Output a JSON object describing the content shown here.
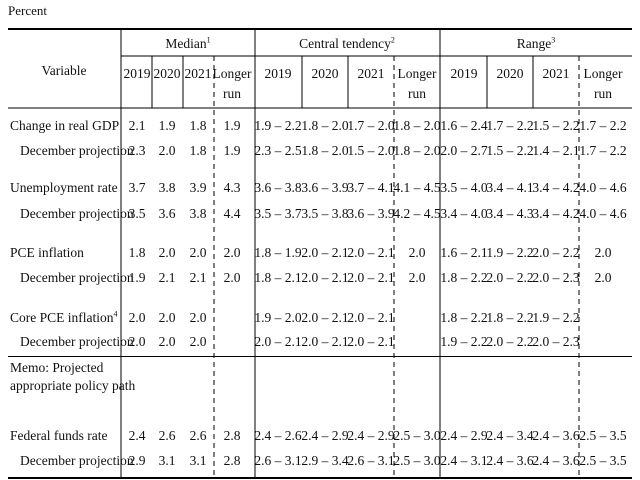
{
  "units_label": "Percent",
  "header": {
    "variable_label": "Variable",
    "groups": [
      {
        "label": "Median",
        "note": "1"
      },
      {
        "label": "Central tendency",
        "note": "2"
      },
      {
        "label": "Range",
        "note": "3"
      }
    ],
    "years": [
      "2019",
      "2020",
      "2021"
    ],
    "longer_run": [
      "Longer",
      "run"
    ]
  },
  "rows": [
    {
      "label": "Change in real GDP",
      "note": "",
      "median": [
        "2.1",
        "1.9",
        "1.8",
        "1.9"
      ],
      "central": [
        "1.9 – 2.2",
        "1.8 – 2.0",
        "1.7 – 2.0",
        "1.8 – 2.0"
      ],
      "range": [
        "1.6 – 2.4",
        "1.7 – 2.2",
        "1.5 – 2.2",
        "1.7 – 2.2"
      ]
    },
    {
      "label": "December projection",
      "note": "",
      "median": [
        "2.3",
        "2.0",
        "1.8",
        "1.9"
      ],
      "central": [
        "2.3 – 2.5",
        "1.8 – 2.0",
        "1.5 – 2.0",
        "1.8 – 2.0"
      ],
      "range": [
        "2.0 – 2.7",
        "1.5 – 2.2",
        "1.4 – 2.1",
        "1.7 – 2.2"
      ]
    },
    {
      "label": "Unemployment rate",
      "note": "",
      "median": [
        "3.7",
        "3.8",
        "3.9",
        "4.3"
      ],
      "central": [
        "3.6 – 3.8",
        "3.6 – 3.9",
        "3.7 – 4.1",
        "4.1 – 4.5"
      ],
      "range": [
        "3.5 – 4.0",
        "3.4 – 4.1",
        "3.4 – 4.2",
        "4.0 – 4.6"
      ]
    },
    {
      "label": "December projection",
      "note": "",
      "median": [
        "3.5",
        "3.6",
        "3.8",
        "4.4"
      ],
      "central": [
        "3.5 – 3.7",
        "3.5 – 3.8",
        "3.6 – 3.9",
        "4.2 – 4.5"
      ],
      "range": [
        "3.4 – 4.0",
        "3.4 – 4.3",
        "3.4 – 4.2",
        "4.0 – 4.6"
      ]
    },
    {
      "label": "PCE inflation",
      "note": "",
      "median": [
        "1.8",
        "2.0",
        "2.0",
        "2.0"
      ],
      "central": [
        "1.8 – 1.9",
        "2.0 – 2.1",
        "2.0 – 2.1",
        "2.0"
      ],
      "range": [
        "1.6 – 2.1",
        "1.9 – 2.2",
        "2.0 – 2.2",
        "2.0"
      ]
    },
    {
      "label": "December projection",
      "note": "",
      "median": [
        "1.9",
        "2.1",
        "2.1",
        "2.0"
      ],
      "central": [
        "1.8 – 2.1",
        "2.0 – 2.1",
        "2.0 – 2.1",
        "2.0"
      ],
      "range": [
        "1.8 – 2.2",
        "2.0 – 2.2",
        "2.0 – 2.3",
        "2.0"
      ]
    },
    {
      "label": "Core PCE inflation",
      "note": "4",
      "median": [
        "2.0",
        "2.0",
        "2.0",
        ""
      ],
      "central": [
        "1.9 – 2.0",
        "2.0 – 2.1",
        "2.0 – 2.1",
        ""
      ],
      "range": [
        "1.8 – 2.2",
        "1.8 – 2.2",
        "1.9 – 2.2",
        ""
      ]
    },
    {
      "label": "December projection",
      "note": "",
      "median": [
        "2.0",
        "2.0",
        "2.0",
        ""
      ],
      "central": [
        "2.0 – 2.1",
        "2.0 – 2.1",
        "2.0 – 2.1",
        ""
      ],
      "range": [
        "1.9 – 2.2",
        "2.0 – 2.2",
        "2.0 – 2.3",
        ""
      ]
    },
    {
      "label": "Federal funds rate",
      "note": "",
      "median": [
        "2.4",
        "2.6",
        "2.6",
        "2.8"
      ],
      "central": [
        "2.4 – 2.6",
        "2.4 – 2.9",
        "2.4 – 2.9",
        "2.5 – 3.0"
      ],
      "range": [
        "2.4 – 2.9",
        "2.4 – 3.4",
        "2.4 – 3.6",
        "2.5 – 3.5"
      ]
    },
    {
      "label": "December projection",
      "note": "",
      "median": [
        "2.9",
        "3.1",
        "3.1",
        "2.8"
      ],
      "central": [
        "2.6 – 3.1",
        "2.9 – 3.4",
        "2.6 – 3.1",
        "2.5 – 3.0"
      ],
      "range": [
        "2.4 – 3.1",
        "2.4 – 3.6",
        "2.4 – 3.6",
        "2.5 – 3.5"
      ]
    }
  ],
  "memo": [
    "Memo: Projected",
    "appropriate policy path"
  ]
}
